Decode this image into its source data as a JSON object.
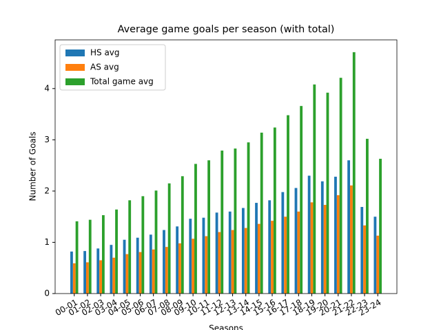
{
  "chart_data": {
    "type": "bar",
    "title": "Average game goals per season (with total)",
    "x_label": "Seasons",
    "y_label": "Number of Goals",
    "categories": [
      "00-01",
      "01-02",
      "02-03",
      "03-04",
      "04-05",
      "05-06",
      "06-07",
      "07-08",
      "08-09",
      "09-10",
      "10-11",
      "11-12",
      "12-13",
      "13-14",
      "14-15",
      "15-16",
      "16-17",
      "17-18",
      "18-19",
      "19-20",
      "20-21",
      "21-22",
      "22-23",
      "23-24"
    ],
    "series": [
      {
        "name": "HS avg",
        "color": "#1f77b4",
        "values": [
          0.82,
          0.83,
          0.88,
          0.95,
          1.05,
          1.09,
          1.15,
          1.24,
          1.31,
          1.46,
          1.48,
          1.58,
          1.6,
          1.67,
          1.77,
          1.82,
          1.98,
          2.06,
          2.3,
          2.19,
          2.28,
          2.6,
          1.69,
          1.5
        ]
      },
      {
        "name": "AS avg",
        "color": "#ff7f0e",
        "values": [
          0.59,
          0.61,
          0.65,
          0.7,
          0.77,
          0.81,
          0.86,
          0.91,
          0.98,
          1.07,
          1.12,
          1.2,
          1.24,
          1.28,
          1.36,
          1.42,
          1.5,
          1.6,
          1.78,
          1.73,
          1.92,
          2.11,
          1.33,
          1.13
        ]
      },
      {
        "name": "Total game avg",
        "color": "#2ca02c",
        "values": [
          1.41,
          1.44,
          1.53,
          1.64,
          1.82,
          1.9,
          2.01,
          2.15,
          2.29,
          2.53,
          2.6,
          2.79,
          2.83,
          2.95,
          3.14,
          3.24,
          3.48,
          3.66,
          4.08,
          3.92,
          4.21,
          4.71,
          3.02,
          2.63
        ]
      }
    ],
    "ylim": [
      0,
      4.95
    ],
    "yticks": [
      0,
      1,
      2,
      3,
      4
    ],
    "grid": false,
    "legend": "upper-left"
  }
}
